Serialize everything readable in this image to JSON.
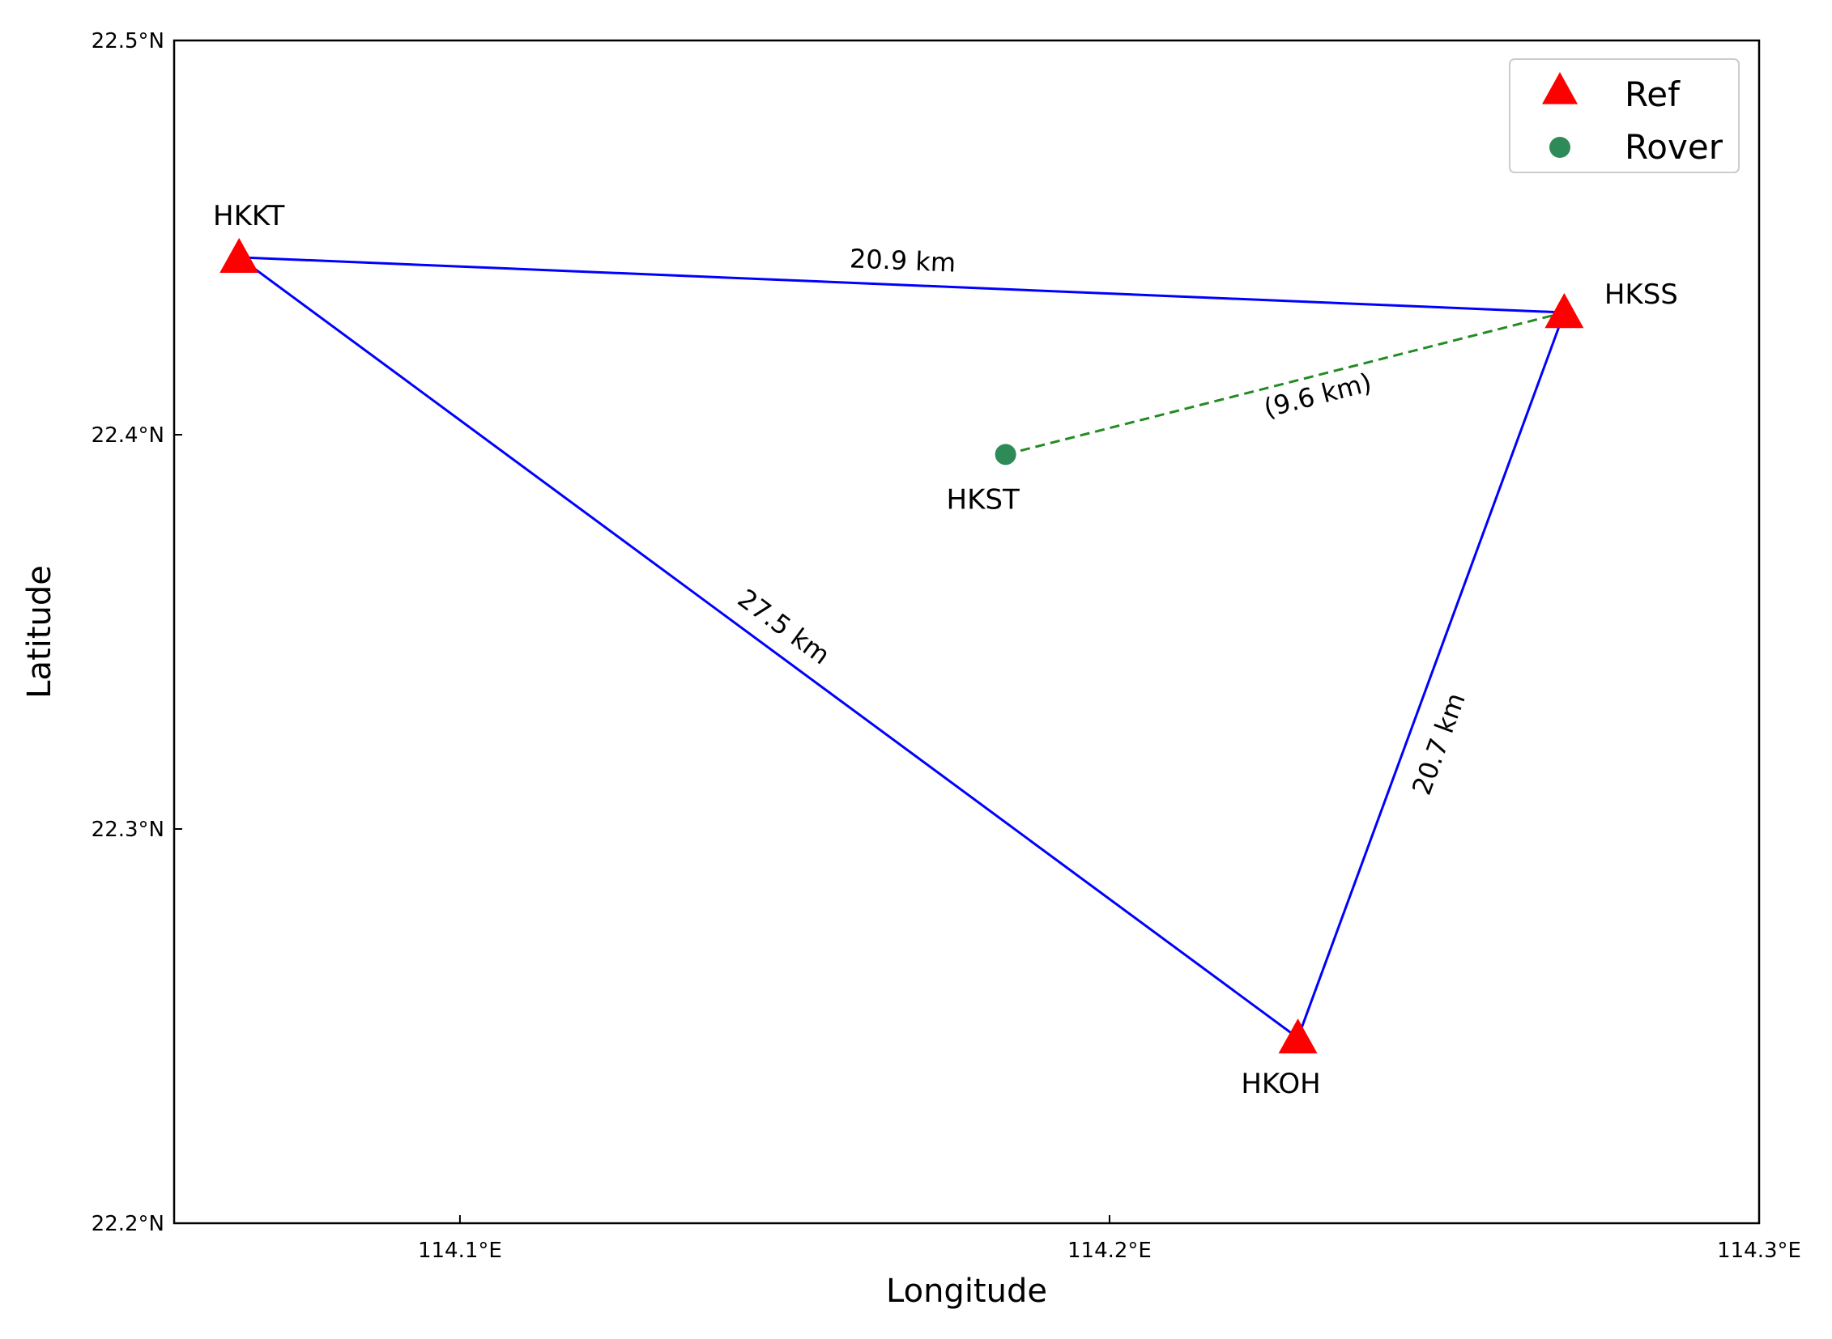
{
  "chart_data": {
    "type": "scatter",
    "xlabel": "Longitude",
    "ylabel": "Latitude",
    "xlim": [
      114.056,
      114.3
    ],
    "ylim": [
      22.2,
      22.5
    ],
    "xticks": [
      {
        "value": 114.1,
        "label": "114.1°E"
      },
      {
        "value": 114.2,
        "label": "114.2°E"
      },
      {
        "value": 114.3,
        "label": "114.3°E"
      }
    ],
    "yticks": [
      {
        "value": 22.2,
        "label": "22.2°N"
      },
      {
        "value": 22.3,
        "label": "22.3°N"
      },
      {
        "value": 22.4,
        "label": "22.4°N"
      },
      {
        "value": 22.5,
        "label": "22.5°N"
      }
    ],
    "legend": {
      "position": "top-right",
      "entries": [
        {
          "label": "Ref",
          "marker": "triangle",
          "color": "#ff0000"
        },
        {
          "label": "Rover",
          "marker": "circle",
          "color": "#2e8b57"
        }
      ]
    },
    "series": [
      {
        "name": "Ref",
        "color": "#ff0000",
        "points": [
          {
            "label": "HKKT",
            "lon": 114.066,
            "lat": 22.445
          },
          {
            "label": "HKSS",
            "lon": 114.27,
            "lat": 22.431
          },
          {
            "label": "HKOH",
            "lon": 114.229,
            "lat": 22.247
          }
        ]
      },
      {
        "name": "Rover",
        "color": "#2e8b57",
        "points": [
          {
            "label": "HKST",
            "lon": 114.184,
            "lat": 22.395
          }
        ]
      }
    ],
    "baselines": [
      {
        "from": "HKKT",
        "to": "HKSS",
        "label": "20.9 km",
        "color": "#0000ff",
        "style": "solid"
      },
      {
        "from": "HKKT",
        "to": "HKOH",
        "label": "27.5 km",
        "color": "#0000ff",
        "style": "solid"
      },
      {
        "from": "HKSS",
        "to": "HKOH",
        "label": "20.7 km",
        "color": "#0000ff",
        "style": "solid"
      },
      {
        "from": "HKST",
        "to": "HKSS",
        "label": "(9.6 km)",
        "color": "#228b22",
        "style": "dashed"
      }
    ],
    "grid": false
  }
}
